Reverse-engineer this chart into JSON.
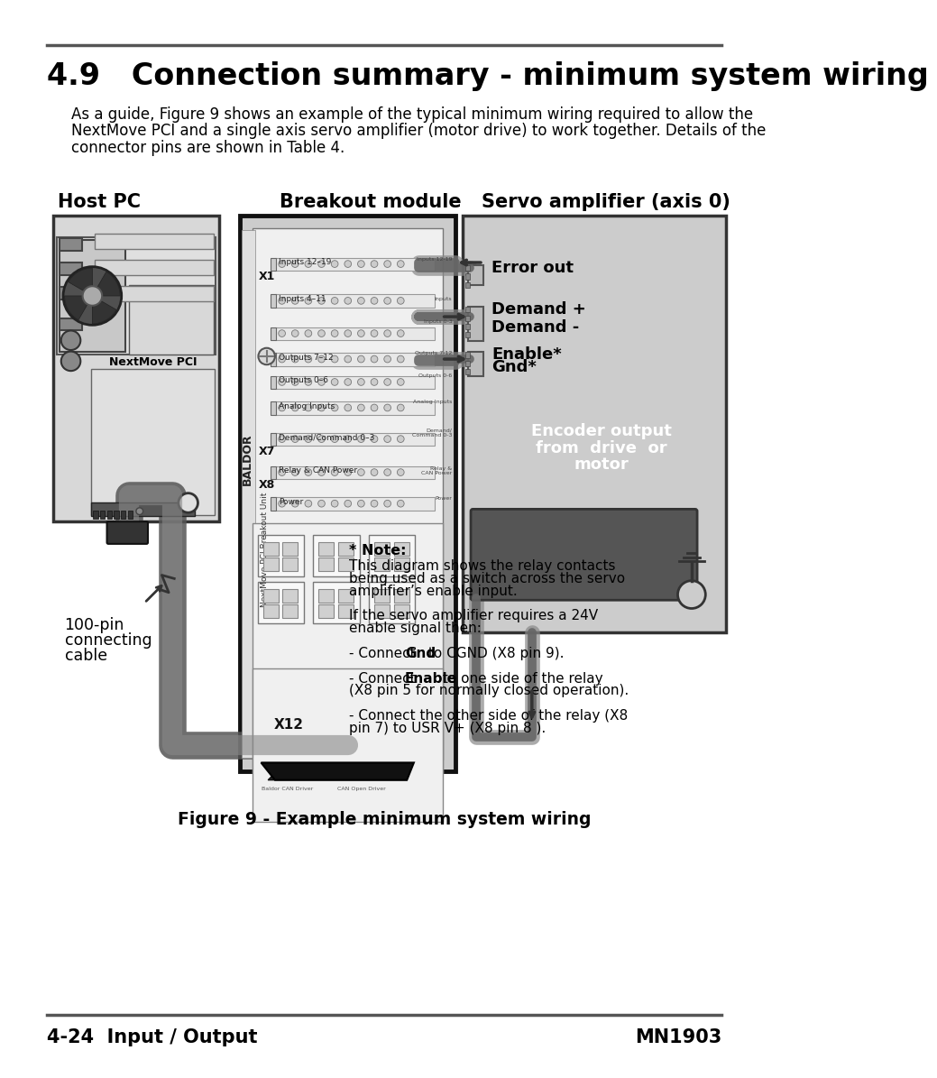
{
  "page_title": "4.9   Connection summary - minimum system wiring",
  "body_text_1": "As a guide, Figure 9 shows an example of the typical minimum wiring required to allow the",
  "body_text_2": "NextMove PCI and a single axis servo amplifier (motor drive) to work together. Details of the",
  "body_text_3": "connector pins are shown in Table 4.",
  "label_host_pc": "Host PC",
  "label_breakout": "Breakout module",
  "label_servo": "Servo amplifier (axis 0)",
  "label_100pin_1": "100-pin",
  "label_100pin_2": "connecting",
  "label_100pin_3": "cable",
  "label_nextmove": "NextMove PCI",
  "label_error_out": "Error out",
  "label_demand_1": "Demand +",
  "label_demand_2": "Demand -",
  "label_enable": "Enable*",
  "label_gnd": "Gnd*",
  "label_encoder_1": "Encoder output",
  "label_encoder_2": "from  drive  or",
  "label_encoder_3": "motor",
  "label_inputs_1219": "Inputs 12–19",
  "label_inputs_411": "Inputs 4–11",
  "label_outputs_712": "Outputs 7–12",
  "label_outputs": "Outputs 0–6",
  "label_analog": "Analog Inputs",
  "label_demand_cmd": "Demand/Command 0–3",
  "label_relay_can": "Relay & CAN Power",
  "label_power": "Power",
  "label_x1": "X1",
  "label_x7": "X7",
  "label_x8": "X8",
  "label_x12": "X12",
  "label_baldor": "BALDOR",
  "label_breakout_unit": "NextMove PCI Breakout Unit",
  "note_title": "* Note:",
  "note_line1": "This diagram shows the relay contacts",
  "note_line2": "being used as a switch across the servo",
  "note_line3": "amplifier’s enable input.",
  "note_line4": "If the servo amplifier requires a 24V",
  "note_line5": "enable signal then:",
  "note_line6": "- Connect ",
  "note_bold_gnd": "Gnd",
  "note_line6b": " to CGND (X8 pin 9).",
  "note_line7": "- Connect ",
  "note_bold_enable": "Enable",
  "note_line7b": " to one side of the relay",
  "note_line8": "(X8 pin 5 for normally closed operation).",
  "note_line9": "- Connect the other side of the relay (X8",
  "note_line10": "pin 7) to USR V+ (X8 pin 8 ).",
  "figure_caption": "Figure 9 - Example minimum system wiring",
  "footer_left": "4-24  Input / Output",
  "footer_right": "MN1903",
  "bg_color": "#ffffff",
  "header_line_color": "#555555",
  "title_color": "#000000",
  "pc_bg": "#d8d8d8",
  "pc_border": "#333333",
  "pc_inner_bg": "#e8e8e8",
  "breakout_bg": "#cccccc",
  "breakout_border": "#111111",
  "breakout_inner_bg": "#e8e8e8",
  "servo_bg": "#cccccc",
  "servo_border": "#333333",
  "wire_gray": "#888888",
  "wire_dark": "#555555",
  "connector_strip": "#aaaaaa"
}
